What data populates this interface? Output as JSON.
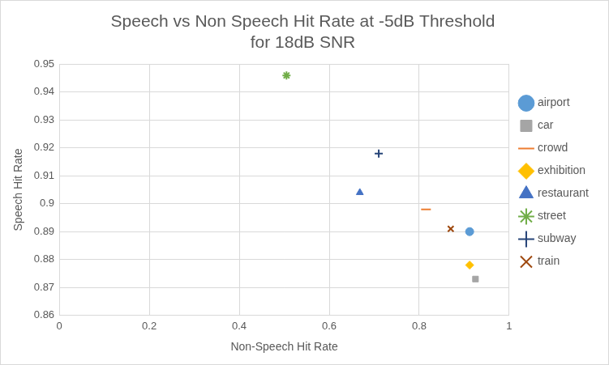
{
  "chart_data": {
    "type": "scatter",
    "title": [
      "Speech vs Non Speech Hit Rate at -5dB Threshold",
      "for 18dB SNR"
    ],
    "x_label": "Non-Speech Hit Rate",
    "y_label": "Speech Hit Rate",
    "xlim": [
      0,
      1
    ],
    "xticks": [
      0,
      0.2,
      0.4,
      0.6,
      0.8,
      1
    ],
    "ylim": [
      0.86,
      0.95
    ],
    "yticks": [
      0.86,
      0.87,
      0.88,
      0.89,
      0.9,
      0.91,
      0.92,
      0.93,
      0.94,
      0.95
    ],
    "grid": true,
    "legend": "right",
    "series": [
      {
        "name": "airport",
        "color": "#5b9bd5",
        "marker": "circle",
        "x": [
          0.912
        ],
        "values": [
          0.89
        ]
      },
      {
        "name": "car",
        "color": "#a5a5a5",
        "marker": "square",
        "x": [
          0.925
        ],
        "values": [
          0.873
        ]
      },
      {
        "name": "crowd",
        "color": "#ed7d31",
        "marker": "dash",
        "x": [
          0.815
        ],
        "values": [
          0.898
        ]
      },
      {
        "name": "exhibition",
        "color": "#ffc000",
        "marker": "diamond",
        "x": [
          0.912
        ],
        "values": [
          0.878
        ]
      },
      {
        "name": "restaurant",
        "color": "#4472c4",
        "marker": "triangle",
        "x": [
          0.668
        ],
        "values": [
          0.904
        ]
      },
      {
        "name": "street",
        "color": "#70ad47",
        "marker": "star",
        "x": [
          0.505
        ],
        "values": [
          0.946
        ]
      },
      {
        "name": "subway",
        "color": "#264478",
        "marker": "plus",
        "x": [
          0.71
        ],
        "values": [
          0.918
        ]
      },
      {
        "name": "train",
        "color": "#9e480e",
        "marker": "x",
        "x": [
          0.87
        ],
        "values": [
          0.891
        ]
      }
    ]
  }
}
